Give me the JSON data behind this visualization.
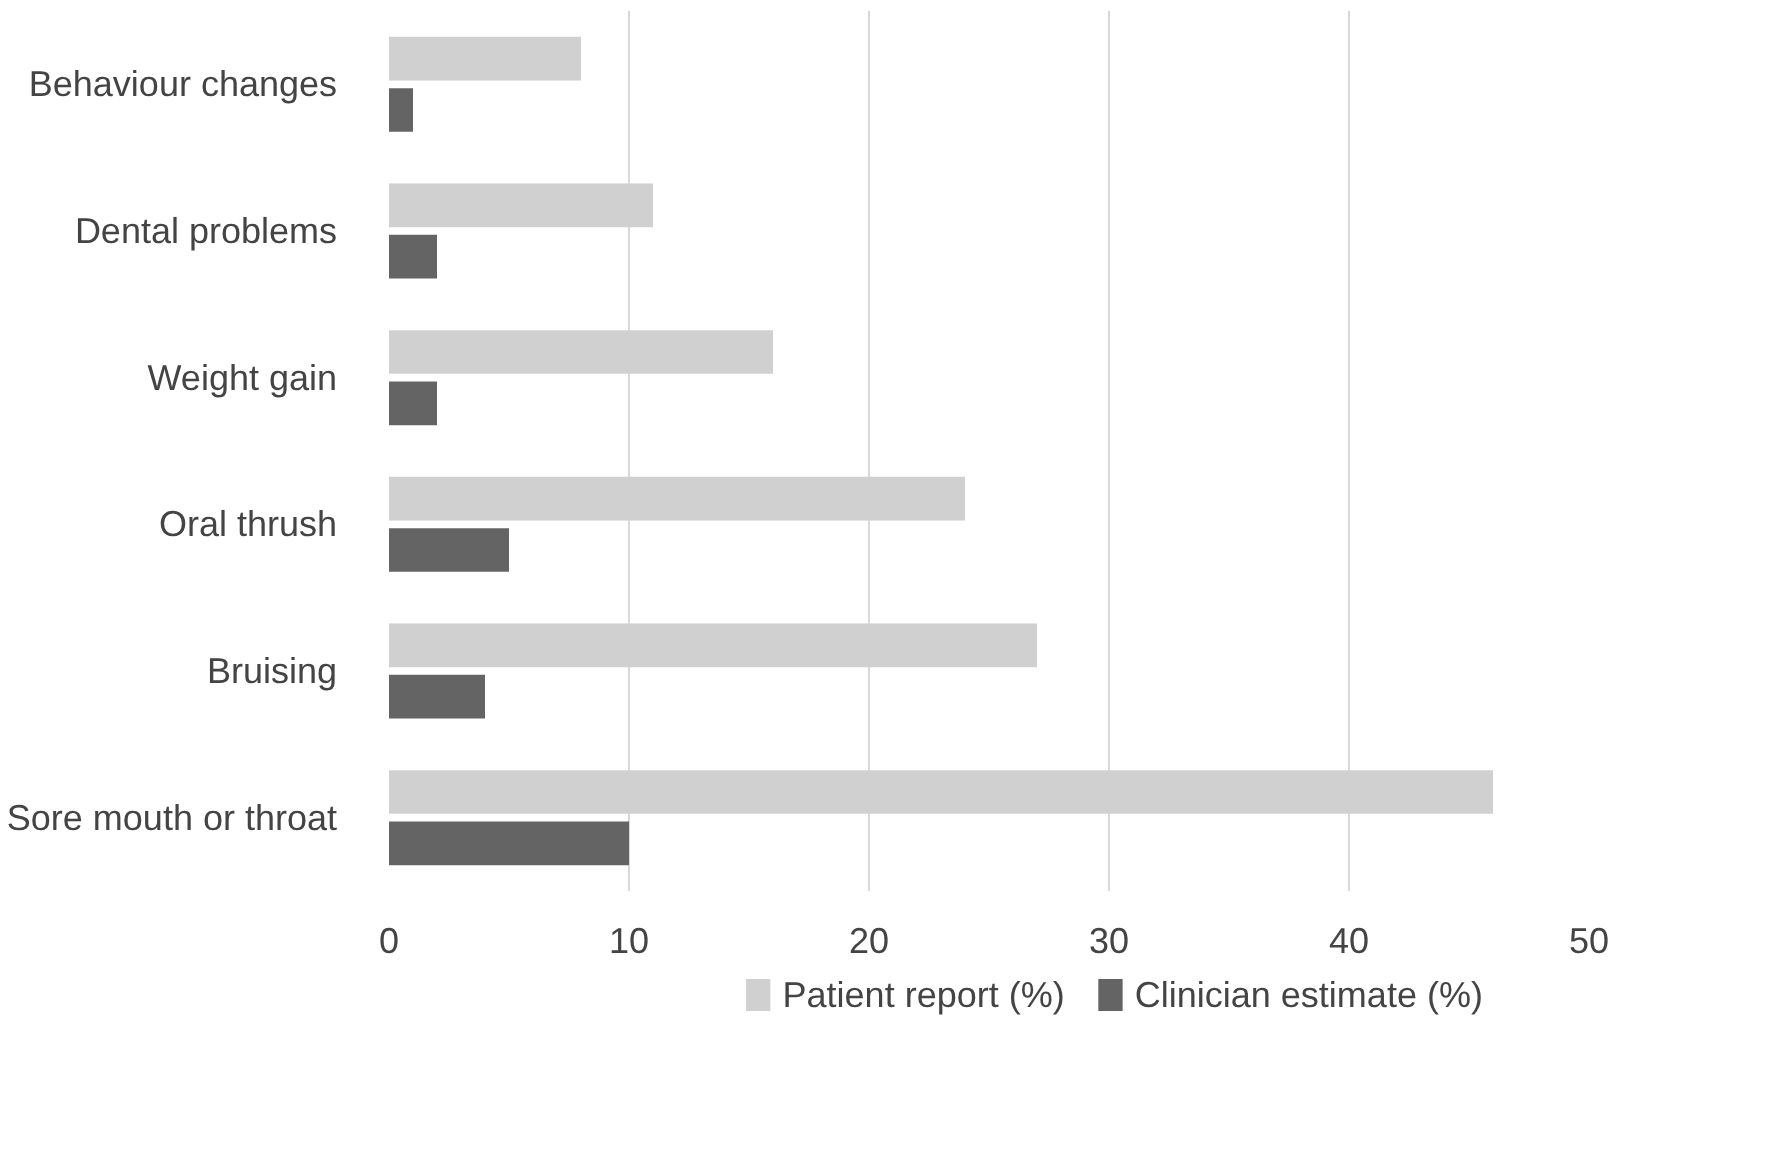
{
  "chart_data": {
    "type": "bar",
    "orientation": "horizontal",
    "categories": [
      "Behaviour changes",
      "Dental problems",
      "Weight gain",
      "Oral thrush",
      "Bruising",
      "Sore mouth or throat"
    ],
    "series": [
      {
        "name": "Patient report (%)",
        "color": "#d0d0d0",
        "values": [
          8,
          11,
          16,
          24,
          27,
          46
        ]
      },
      {
        "name": "Clinician estimate (%)",
        "color": "#646464",
        "values": [
          1,
          2,
          2,
          5,
          4,
          10
        ]
      }
    ],
    "xlim": [
      0,
      50
    ],
    "xticks": [
      0,
      10,
      20,
      30,
      40,
      50
    ],
    "grid": "x",
    "legend": "bottom"
  }
}
